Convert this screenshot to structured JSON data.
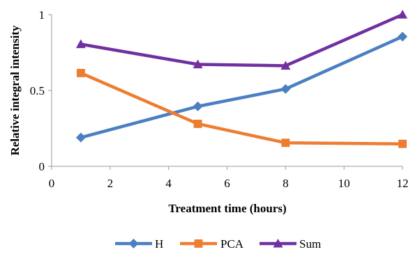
{
  "chart_data": {
    "type": "line",
    "title": "",
    "xlabel": "Treatment time (hours)",
    "ylabel": "Relative integral intensity",
    "xlim": [
      0,
      12
    ],
    "ylim": [
      0,
      1
    ],
    "xticks": [
      0,
      2,
      4,
      6,
      8,
      10,
      12
    ],
    "xtick_labels": [
      "0",
      "2",
      "4",
      "6",
      "8",
      "10",
      "12"
    ],
    "yticks": [
      0,
      0.5,
      1
    ],
    "ytick_labels": [
      "0",
      "0.5",
      "1"
    ],
    "grid": false,
    "legend_position": "bottom",
    "x": [
      1,
      5,
      8,
      12
    ],
    "series": [
      {
        "name": "H",
        "color": "#4a7fc1",
        "marker": "diamond",
        "values": [
          0.19,
          0.395,
          0.51,
          0.855
        ]
      },
      {
        "name": "PCA",
        "color": "#ed7d31",
        "marker": "square",
        "values": [
          0.615,
          0.28,
          0.155,
          0.148
        ]
      },
      {
        "name": "Sum",
        "color": "#7030a0",
        "marker": "triangle",
        "values": [
          0.805,
          0.672,
          0.663,
          1.0
        ]
      }
    ]
  }
}
